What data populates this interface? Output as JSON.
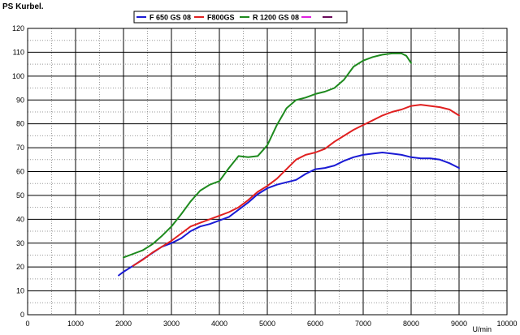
{
  "chart_data": {
    "type": "line",
    "ylabel": "PS Kurbel.",
    "xlabel": "U/min",
    "xlim": [
      0,
      10000
    ],
    "ylim": [
      0,
      120
    ],
    "xticks": [
      0,
      1000,
      2000,
      3000,
      4000,
      5000,
      6000,
      7000,
      8000,
      9000,
      10000
    ],
    "yticks": [
      0,
      10,
      20,
      30,
      40,
      50,
      60,
      70,
      80,
      90,
      100,
      110,
      120
    ],
    "grid": true,
    "legend_position": "top",
    "legend": [
      {
        "name": "F 650 GS 08",
        "color": "#1a1ad4"
      },
      {
        "name": "F800GS",
        "color": "#e02020"
      },
      {
        "name": "R 1200 GS 08",
        "color": "#1e8a1e"
      },
      {
        "name": "",
        "color": "#e020e0"
      },
      {
        "name": "",
        "color": "#6a0a5a"
      }
    ],
    "series": [
      {
        "name": "F 650 GS 08",
        "color": "#1a1ad4",
        "x": [
          1900,
          2000,
          2200,
          2500,
          2800,
          3000,
          3200,
          3400,
          3600,
          3800,
          4000,
          4200,
          4400,
          4600,
          4800,
          5000,
          5200,
          5400,
          5600,
          5800,
          6000,
          6200,
          6400,
          6600,
          6800,
          7000,
          7200,
          7400,
          7600,
          7800,
          8000,
          8200,
          8400,
          8600,
          8800,
          9000
        ],
        "y": [
          16.5,
          18,
          20.5,
          24.5,
          28.5,
          30,
          32,
          35,
          37,
          38,
          39.5,
          41,
          44,
          47,
          50.5,
          53,
          54.5,
          55.5,
          56.5,
          59,
          61,
          61.5,
          62.5,
          64.5,
          66,
          67,
          67.5,
          68,
          67.5,
          67,
          66,
          65.5,
          65.5,
          65,
          63.5,
          61.5
        ]
      },
      {
        "name": "F800GS",
        "color": "#e02020",
        "x": [
          2200,
          2400,
          2600,
          2800,
          3000,
          3200,
          3400,
          3600,
          3800,
          4000,
          4200,
          4400,
          4600,
          4800,
          5000,
          5200,
          5400,
          5600,
          5800,
          6000,
          6200,
          6400,
          6600,
          6800,
          7000,
          7200,
          7400,
          7600,
          7800,
          8000,
          8200,
          8400,
          8600,
          8800,
          9000
        ],
        "y": [
          20.5,
          23,
          26,
          28.5,
          31,
          34,
          37,
          38.5,
          40,
          41.5,
          43,
          45,
          48,
          51.5,
          54,
          57,
          61,
          65,
          67,
          68,
          69.5,
          72.5,
          75,
          77.5,
          79.5,
          81.5,
          83.5,
          85,
          86,
          87.5,
          88,
          87.5,
          87,
          86,
          83.5
        ]
      },
      {
        "name": "R 1200 GS 08",
        "color": "#1e8a1e",
        "x": [
          2000,
          2200,
          2400,
          2600,
          2800,
          3000,
          3200,
          3400,
          3600,
          3800,
          4000,
          4200,
          4400,
          4600,
          4800,
          5000,
          5200,
          5400,
          5600,
          5800,
          6000,
          6200,
          6400,
          6600,
          6800,
          7000,
          7200,
          7400,
          7600,
          7800,
          7900,
          8000
        ],
        "y": [
          24,
          25.5,
          27,
          29.5,
          33,
          37,
          42,
          47.5,
          52,
          54.5,
          56,
          61.5,
          66.5,
          66,
          66.5,
          71,
          79.5,
          86.5,
          90,
          91,
          92.5,
          93.5,
          95,
          98.5,
          104,
          106.5,
          108,
          109,
          109.5,
          109.5,
          108.5,
          105.5
        ]
      }
    ]
  }
}
